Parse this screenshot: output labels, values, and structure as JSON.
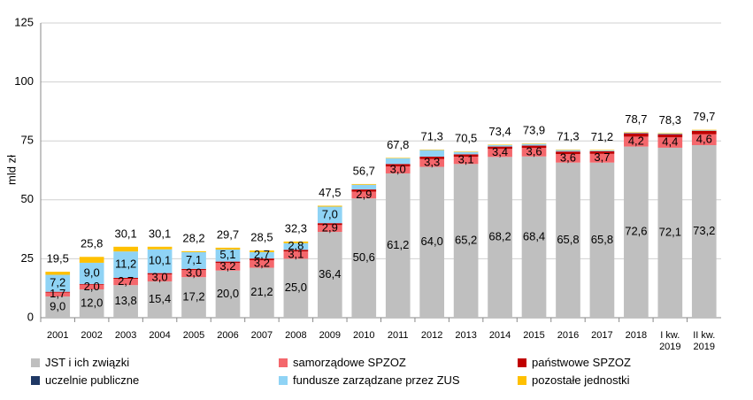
{
  "chart_data": {
    "type": "stacked_bar",
    "y_label": "mld zł",
    "categories": [
      "2001",
      "2002",
      "2003",
      "2004",
      "2005",
      "2006",
      "2007",
      "2008",
      "2009",
      "2010",
      "2011",
      "2012",
      "2013",
      "2014",
      "2015",
      "2016",
      "2017",
      "2018",
      "I kw. 2019",
      "II kw. 2019"
    ],
    "ylim": [
      0,
      125
    ],
    "yticks": [
      0,
      25,
      50,
      75,
      100,
      125
    ],
    "grid": true,
    "legend": "bottom",
    "series": [
      {
        "name": "JST i ich związki",
        "color": "#bfbfbf",
        "values": [
          9.0,
          12.0,
          13.8,
          15.4,
          17.2,
          20.0,
          21.2,
          25.0,
          36.4,
          50.6,
          61.2,
          64.0,
          65.2,
          68.2,
          68.4,
          65.8,
          65.8,
          72.6,
          72.1,
          73.2
        ],
        "value_labels": [
          "9,0",
          "12,0",
          "13,8",
          "15,4",
          "17,2",
          "20,0",
          "21,2",
          "25,0",
          "36,4",
          "50,6",
          "61,2",
          "64,0",
          "65,2",
          "68,2",
          "68,4",
          "65,8",
          "65,8",
          "72,6",
          "72,1",
          "73,2"
        ]
      },
      {
        "name": "samorządowe SPZOZ",
        "color": "#f4676c",
        "values": [
          1.7,
          2.0,
          2.7,
          3.0,
          3.0,
          3.2,
          3.2,
          3.1,
          2.9,
          2.9,
          3.0,
          3.3,
          3.1,
          3.4,
          3.6,
          3.6,
          3.7,
          4.2,
          4.4,
          4.6
        ],
        "value_labels": [
          "1,7",
          "2,0",
          "2,7",
          "3,0",
          "3,0",
          "3,2",
          "3,2",
          "3,1",
          "2,9",
          "2,9",
          "3,0",
          "3,3",
          "3,1",
          "3,4",
          "3,6",
          "3,6",
          "3,7",
          "4,2",
          "4,4",
          "4,6"
        ]
      },
      {
        "name": "państwowe SPZOZ",
        "color": "#c00000",
        "values": [
          0.3,
          0.3,
          0.4,
          0.5,
          0.5,
          0.6,
          0.7,
          0.7,
          0.8,
          0.9,
          1.0,
          1.0,
          1.0,
          1.0,
          1.0,
          1.1,
          1.1,
          1.4,
          1.3,
          1.4
        ]
      },
      {
        "name": "uczelnie publiczne",
        "color": "#1f3864",
        "values": [
          0,
          0,
          0,
          0,
          0,
          0,
          0,
          0,
          0,
          0,
          0,
          0,
          0,
          0,
          0,
          0,
          0,
          0.1,
          0.1,
          0.1
        ]
      },
      {
        "name": "fundusze zarządzane przez ZUS",
        "color": "#8fd3f5",
        "values": [
          7.2,
          9.0,
          11.2,
          10.1,
          7.1,
          5.1,
          2.7,
          2.8,
          7.0,
          2.0,
          2.4,
          2.8,
          1.0,
          0.6,
          0.7,
          0.6,
          0.4,
          0.2,
          0.2,
          0.2
        ],
        "value_labels": [
          "7,2",
          "9,0",
          "11,2",
          "10,1",
          "7,1",
          "5,1",
          "2,7",
          "2,8",
          "7,0",
          null,
          null,
          null,
          null,
          null,
          null,
          null,
          null,
          null,
          null,
          null
        ]
      },
      {
        "name": "pozostałe jednostki",
        "color": "#ffc000",
        "values": [
          1.3,
          2.5,
          2.0,
          1.1,
          0.4,
          0.8,
          0.7,
          0.7,
          0.4,
          0.3,
          0.2,
          0.2,
          0.2,
          0.2,
          0.2,
          0.2,
          0.2,
          0.2,
          0.2,
          0.2
        ]
      }
    ],
    "totals": [
      19.5,
      25.8,
      30.1,
      30.1,
      28.2,
      29.7,
      28.5,
      32.3,
      47.5,
      56.7,
      67.8,
      71.3,
      70.5,
      73.4,
      73.9,
      71.3,
      71.2,
      78.7,
      78.3,
      79.7
    ],
    "total_labels": [
      "19,5",
      "25,8",
      "30,1",
      "30,1",
      "28,2",
      "29,7",
      "28,5",
      "32,3",
      "47,5",
      "56,7",
      "67,8",
      "71,3",
      "70,5",
      "73,4",
      "73,9",
      "71,3",
      "71,2",
      "78,7",
      "78,3",
      "79,7"
    ]
  }
}
